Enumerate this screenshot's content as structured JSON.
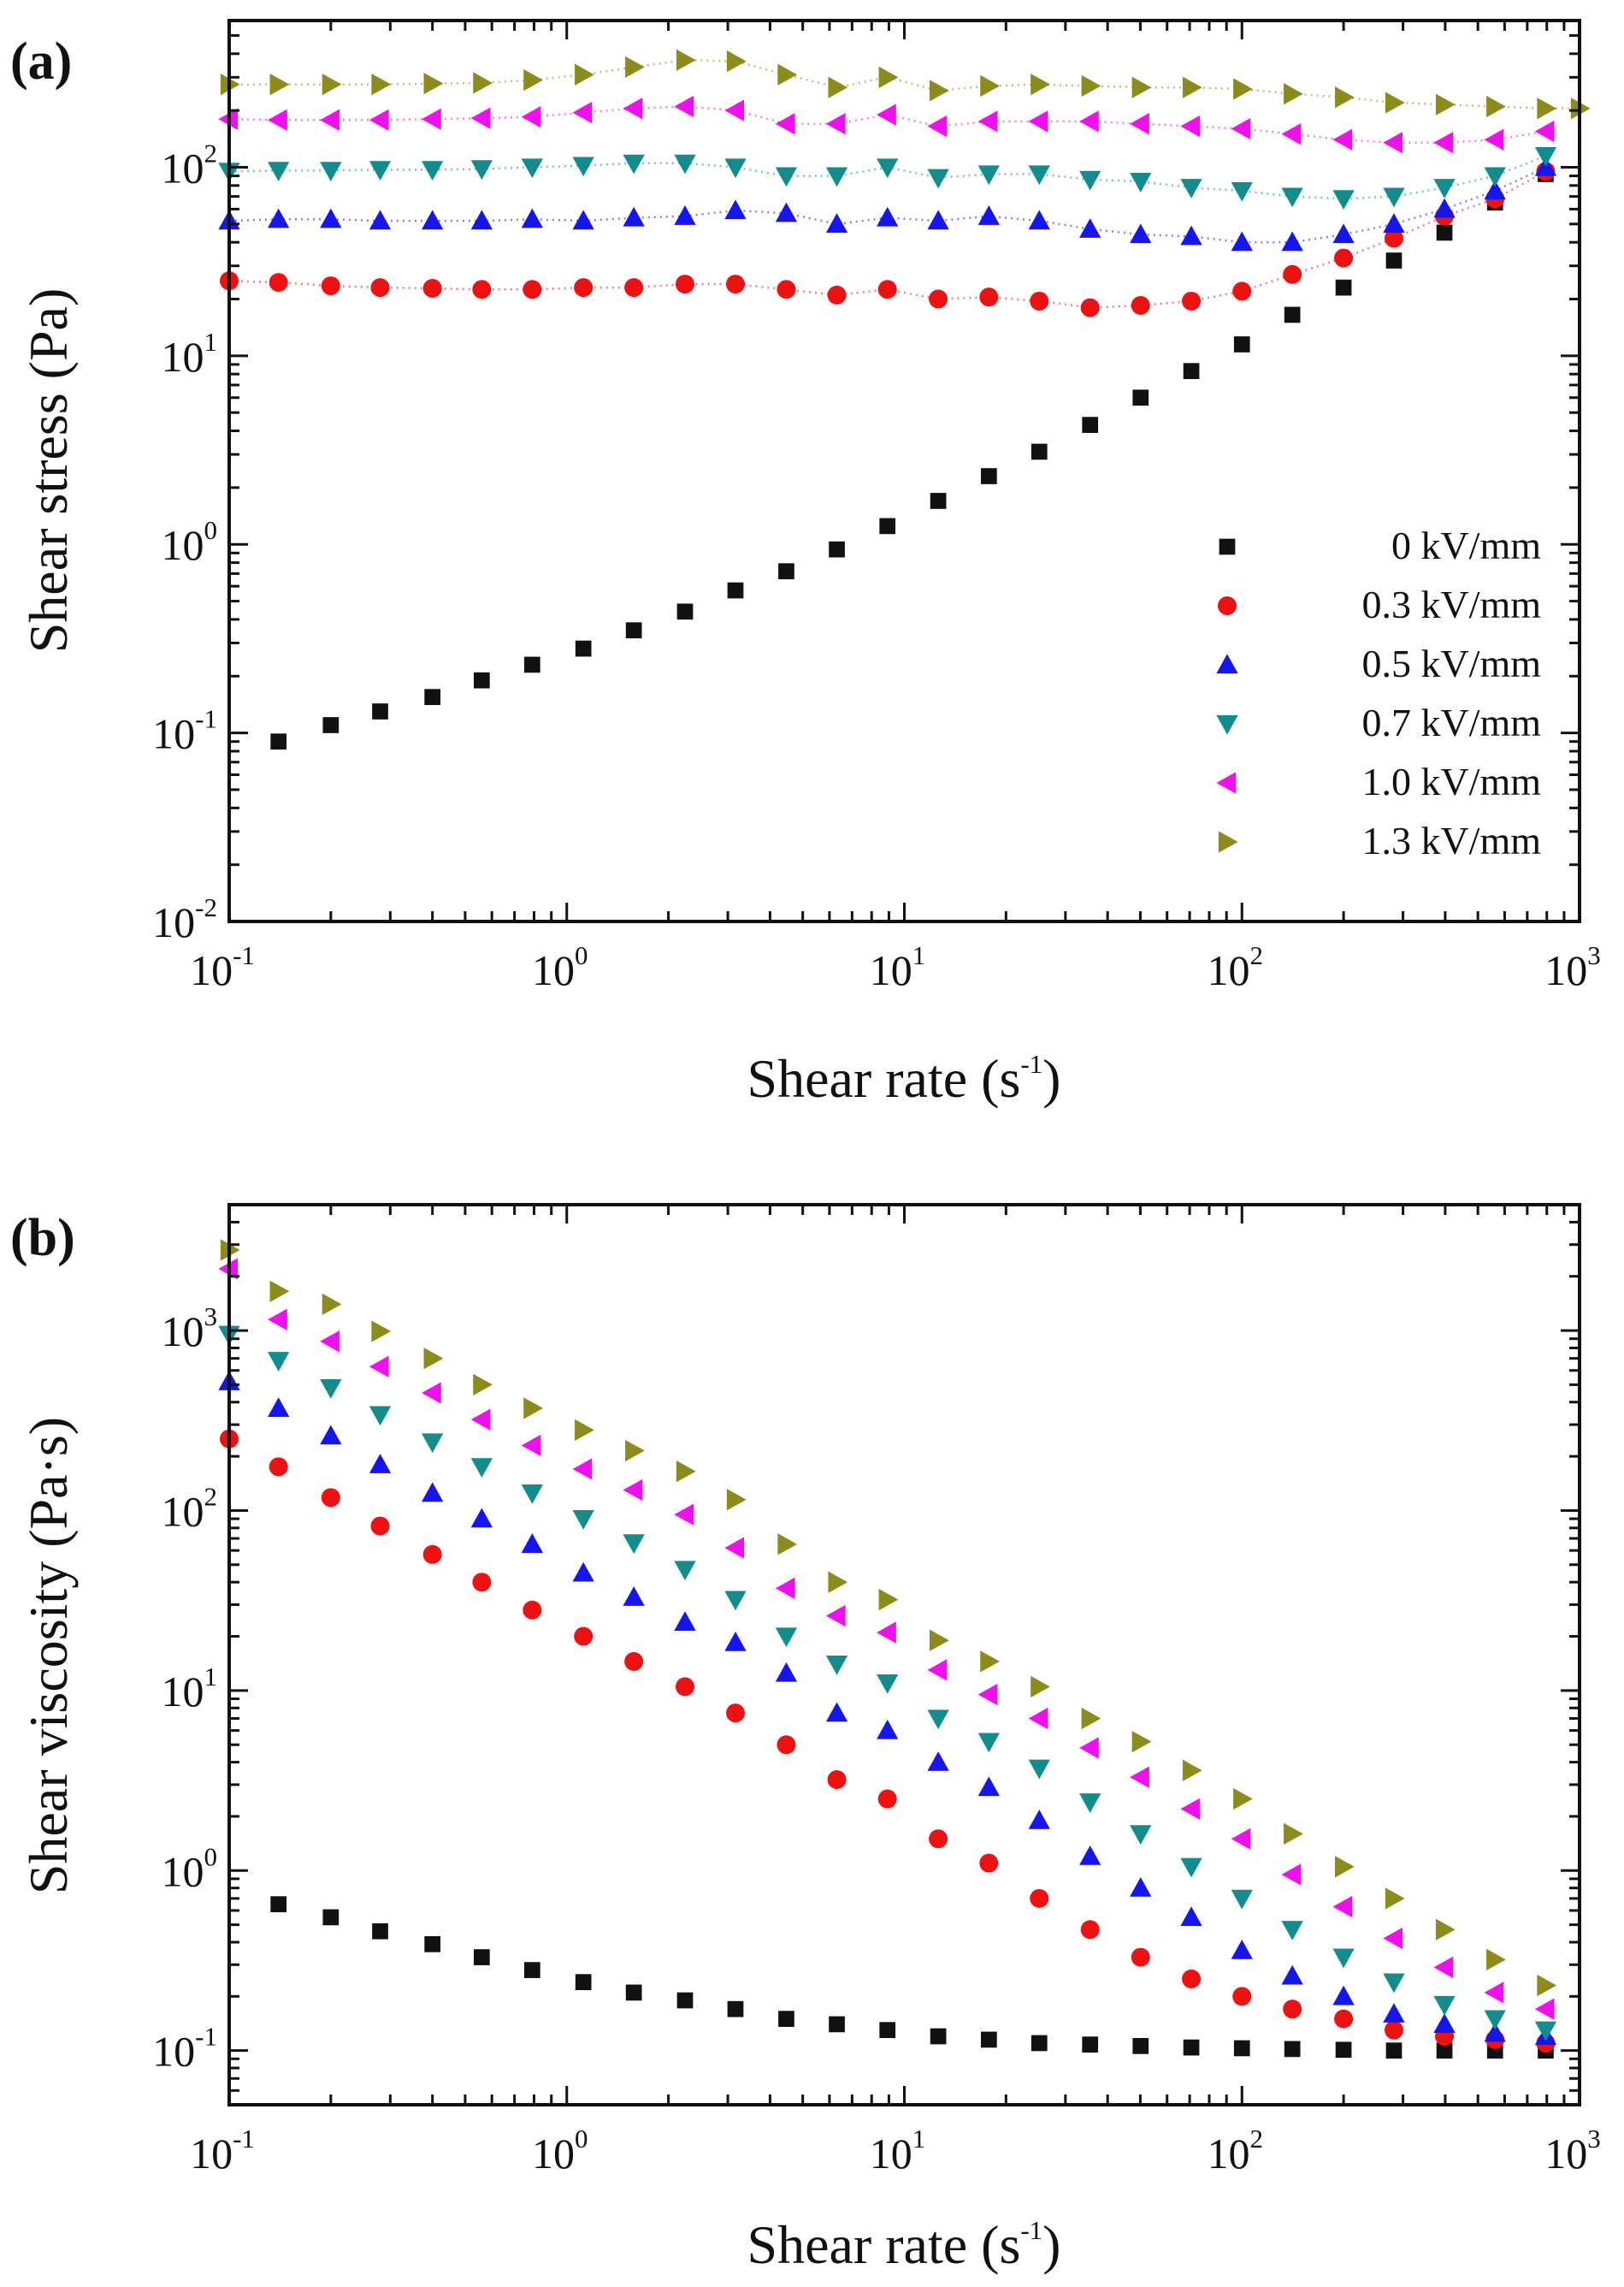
{
  "chart_data": [
    {
      "panel_label": "(a)",
      "type": "scatter",
      "xlabel": "Shear rate (s",
      "xlabel_sup": "-1",
      "xlabel_close": ")",
      "ylabel": "Shear stress (Pa)",
      "xscale": "log",
      "yscale": "log",
      "xlim": [
        0.1,
        1000
      ],
      "ylim": [
        0.01,
        600
      ],
      "x_ticks": [
        {
          "base": "10",
          "exp": "-1"
        },
        {
          "base": "10",
          "exp": "0"
        },
        {
          "base": "10",
          "exp": "1"
        },
        {
          "base": "10",
          "exp": "2"
        },
        {
          "base": "10",
          "exp": "3"
        }
      ],
      "y_ticks": [
        {
          "base": "10",
          "exp": "-2"
        },
        {
          "base": "10",
          "exp": "-1"
        },
        {
          "base": "10",
          "exp": "0"
        },
        {
          "base": "10",
          "exp": "1"
        },
        {
          "base": "10",
          "exp": "2"
        }
      ],
      "legend_position": "bottom-right",
      "x": [
        0.1,
        0.14,
        0.2,
        0.28,
        0.4,
        0.56,
        0.79,
        1.12,
        1.58,
        2.24,
        3.16,
        4.47,
        6.31,
        8.91,
        12.6,
        17.8,
        25.1,
        35.5,
        50.1,
        70.8,
        100,
        141,
        200,
        282,
        398,
        562,
        794,
        1000
      ],
      "series": [
        {
          "name": "0 kV/mm",
          "marker": "square",
          "color": "#111111",
          "fit": false,
          "x": [
            0.14,
            0.2,
            0.28,
            0.4,
            0.56,
            0.79,
            1.12,
            1.58,
            2.24,
            3.16,
            4.47,
            6.31,
            8.91,
            12.6,
            17.8,
            25.1,
            35.5,
            50.1,
            70.8,
            100,
            141,
            200,
            282,
            398,
            562,
            794
          ],
          "values": [
            0.09,
            0.11,
            0.13,
            0.155,
            0.19,
            0.23,
            0.28,
            0.35,
            0.44,
            0.57,
            0.72,
            0.94,
            1.25,
            1.7,
            2.3,
            3.1,
            4.3,
            6.0,
            8.3,
            11.5,
            16.5,
            23,
            32,
            45,
            65,
            92
          ]
        },
        {
          "name": "0.3 kV/mm",
          "marker": "circle",
          "color": "#ee1111",
          "fit": true,
          "x": [
            0.1,
            0.14,
            0.2,
            0.28,
            0.4,
            0.56,
            0.79,
            1.12,
            1.58,
            2.24,
            3.16,
            4.47,
            6.31,
            8.91,
            12.6,
            17.8,
            25.1,
            35.5,
            50.1,
            70.8,
            100,
            141,
            200,
            282,
            398,
            562,
            794
          ],
          "values": [
            25,
            24.5,
            23.5,
            23,
            22.8,
            22.5,
            22.5,
            23,
            23,
            24,
            24,
            22.5,
            21,
            22.5,
            20,
            20.5,
            19.5,
            18,
            18.5,
            19.5,
            22,
            27,
            33,
            42,
            55,
            68,
            95
          ]
        },
        {
          "name": "0.5 kV/mm",
          "marker": "triangle-up",
          "color": "#1515ee",
          "fit": true,
          "x": [
            0.1,
            0.14,
            0.2,
            0.28,
            0.4,
            0.56,
            0.79,
            1.12,
            1.58,
            2.24,
            3.16,
            4.47,
            6.31,
            8.91,
            12.6,
            17.8,
            25.1,
            35.5,
            50.1,
            70.8,
            100,
            141,
            200,
            282,
            398,
            562,
            794
          ],
          "values": [
            52,
            53,
            53,
            52,
            52,
            52,
            53,
            52,
            54,
            55,
            59,
            57,
            50,
            54,
            52,
            55,
            52,
            47,
            44,
            43,
            40,
            40,
            44,
            50,
            60,
            75,
            100
          ]
        },
        {
          "name": "0.7 kV/mm",
          "marker": "triangle-down",
          "color": "#128c8c",
          "fit": true,
          "x": [
            0.1,
            0.14,
            0.2,
            0.28,
            0.4,
            0.56,
            0.79,
            1.12,
            1.58,
            2.24,
            3.16,
            4.47,
            6.31,
            8.91,
            12.6,
            17.8,
            25.1,
            35.5,
            50.1,
            70.8,
            100,
            141,
            200,
            282,
            398,
            562,
            794
          ],
          "values": [
            95,
            96,
            96,
            97,
            97,
            98,
            100,
            102,
            105,
            105,
            100,
            90,
            90,
            100,
            88,
            92,
            92,
            86,
            84,
            78,
            75,
            70,
            68,
            70,
            78,
            90,
            115
          ]
        },
        {
          "name": "1.0 kV/mm",
          "marker": "triangle-left",
          "color": "#ee11ee",
          "fit": true,
          "x": [
            0.1,
            0.14,
            0.2,
            0.28,
            0.4,
            0.56,
            0.79,
            1.12,
            1.58,
            2.24,
            3.16,
            4.47,
            6.31,
            8.91,
            12.6,
            17.8,
            25.1,
            35.5,
            50.1,
            70.8,
            100,
            141,
            200,
            282,
            398,
            562,
            794
          ],
          "values": [
            180,
            178,
            178,
            178,
            180,
            182,
            185,
            195,
            205,
            210,
            200,
            170,
            170,
            190,
            165,
            175,
            175,
            175,
            170,
            165,
            160,
            150,
            140,
            135,
            135,
            140,
            155
          ]
        },
        {
          "name": "1.3 kV/mm",
          "marker": "triangle-right",
          "color": "#8c8c1a",
          "fit": true,
          "x": [
            0.1,
            0.14,
            0.2,
            0.28,
            0.4,
            0.56,
            0.79,
            1.12,
            1.58,
            2.24,
            3.16,
            4.47,
            6.31,
            8.91,
            12.6,
            17.8,
            25.1,
            35.5,
            50.1,
            70.8,
            100,
            141,
            200,
            282,
            398,
            562,
            794,
            1000
          ],
          "values": [
            275,
            275,
            275,
            275,
            278,
            280,
            290,
            310,
            340,
            370,
            365,
            310,
            265,
            300,
            255,
            270,
            275,
            270,
            265,
            265,
            260,
            245,
            235,
            220,
            215,
            210,
            205,
            205
          ]
        }
      ]
    },
    {
      "panel_label": "(b)",
      "type": "scatter",
      "xlabel": "Shear rate (s",
      "xlabel_sup": "-1",
      "xlabel_close": ")",
      "ylabel": "Shear viscosity (Pa·s)",
      "xscale": "log",
      "yscale": "log",
      "xlim": [
        0.1,
        1000
      ],
      "ylim": [
        0.05,
        5000
      ],
      "x_ticks": [
        {
          "base": "10",
          "exp": "-1"
        },
        {
          "base": "10",
          "exp": "0"
        },
        {
          "base": "10",
          "exp": "1"
        },
        {
          "base": "10",
          "exp": "2"
        },
        {
          "base": "10",
          "exp": "3"
        }
      ],
      "y_ticks": [
        {
          "base": "10",
          "exp": "-1"
        },
        {
          "base": "10",
          "exp": "0"
        },
        {
          "base": "10",
          "exp": "1"
        },
        {
          "base": "10",
          "exp": "2"
        },
        {
          "base": "10",
          "exp": "3"
        }
      ],
      "x": [
        0.1,
        0.14,
        0.2,
        0.28,
        0.4,
        0.56,
        0.79,
        1.12,
        1.58,
        2.24,
        3.16,
        4.47,
        6.31,
        8.91,
        12.6,
        17.8,
        25.1,
        35.5,
        50.1,
        70.8,
        100,
        141,
        200,
        282,
        398,
        562,
        794
      ],
      "series": [
        {
          "name": "0 kV/mm",
          "marker": "square",
          "color": "#111111",
          "x": [
            0.14,
            0.2,
            0.28,
            0.4,
            0.56,
            0.79,
            1.12,
            1.58,
            2.24,
            3.16,
            4.47,
            6.31,
            8.91,
            12.6,
            17.8,
            25.1,
            35.5,
            50.1,
            70.8,
            100,
            141,
            200,
            282,
            398,
            562,
            794
          ],
          "values": [
            0.65,
            0.55,
            0.46,
            0.39,
            0.33,
            0.28,
            0.24,
            0.21,
            0.19,
            0.17,
            0.15,
            0.14,
            0.13,
            0.12,
            0.115,
            0.11,
            0.108,
            0.106,
            0.104,
            0.103,
            0.102,
            0.101,
            0.1,
            0.1,
            0.1,
            0.1
          ]
        },
        {
          "name": "0.3 kV/mm",
          "marker": "circle",
          "color": "#ee1111",
          "x": [
            0.1,
            0.14,
            0.2,
            0.28,
            0.4,
            0.56,
            0.79,
            1.12,
            1.58,
            2.24,
            3.16,
            4.47,
            6.31,
            8.91,
            12.6,
            17.8,
            25.1,
            35.5,
            50.1,
            70.8,
            100,
            141,
            200,
            282,
            398,
            562,
            794
          ],
          "values": [
            250,
            175,
            118,
            82,
            57,
            40,
            28,
            20,
            14.5,
            10.5,
            7.5,
            5.0,
            3.2,
            2.5,
            1.5,
            1.1,
            0.7,
            0.47,
            0.33,
            0.25,
            0.2,
            0.17,
            0.15,
            0.13,
            0.12,
            0.115,
            0.11
          ]
        },
        {
          "name": "0.5 kV/mm",
          "marker": "triangle-up",
          "color": "#1515ee",
          "x": [
            0.1,
            0.14,
            0.2,
            0.28,
            0.4,
            0.56,
            0.79,
            1.12,
            1.58,
            2.24,
            3.16,
            4.47,
            6.31,
            8.91,
            12.6,
            17.8,
            25.1,
            35.5,
            50.1,
            70.8,
            100,
            141,
            200,
            282,
            398,
            562,
            794
          ],
          "values": [
            520,
            370,
            260,
            180,
            125,
            90,
            65,
            45,
            33,
            24,
            18.5,
            12.5,
            7.5,
            6.0,
            4.0,
            2.9,
            1.9,
            1.2,
            0.8,
            0.55,
            0.36,
            0.26,
            0.2,
            0.16,
            0.14,
            0.125,
            0.12
          ]
        },
        {
          "name": "0.7 kV/mm",
          "marker": "triangle-down",
          "color": "#128c8c",
          "x": [
            0.1,
            0.14,
            0.2,
            0.28,
            0.4,
            0.56,
            0.79,
            1.12,
            1.58,
            2.24,
            3.16,
            4.47,
            6.31,
            8.91,
            12.6,
            17.8,
            25.1,
            35.5,
            50.1,
            70.8,
            100,
            141,
            200,
            282,
            398,
            562,
            794
          ],
          "values": [
            950,
            680,
            480,
            340,
            240,
            175,
            125,
            90,
            66,
            47,
            32,
            20,
            14,
            11,
            7,
            5.2,
            3.7,
            2.4,
            1.6,
            1.05,
            0.7,
            0.47,
            0.33,
            0.24,
            0.18,
            0.15,
            0.13
          ]
        },
        {
          "name": "1.0 kV/mm",
          "marker": "triangle-left",
          "color": "#ee11ee",
          "x": [
            0.1,
            0.14,
            0.2,
            0.28,
            0.4,
            0.56,
            0.79,
            1.12,
            1.58,
            2.24,
            3.16,
            4.47,
            6.31,
            8.91,
            12.6,
            17.8,
            25.1,
            35.5,
            50.1,
            70.8,
            100,
            141,
            200,
            282,
            398,
            562,
            794
          ],
          "values": [
            2200,
            1150,
            870,
            630,
            450,
            320,
            230,
            170,
            130,
            95,
            62,
            37,
            26,
            21,
            13,
            9.5,
            7,
            4.8,
            3.3,
            2.2,
            1.5,
            0.95,
            0.63,
            0.42,
            0.29,
            0.21,
            0.17
          ]
        },
        {
          "name": "1.3 kV/mm",
          "marker": "triangle-right",
          "color": "#8c8c1a",
          "x": [
            0.1,
            0.14,
            0.2,
            0.28,
            0.4,
            0.56,
            0.79,
            1.12,
            1.58,
            2.24,
            3.16,
            4.47,
            6.31,
            8.91,
            12.6,
            17.8,
            25.1,
            35.5,
            50.1,
            70.8,
            100,
            141,
            200,
            282,
            398,
            562,
            794
          ],
          "values": [
            2800,
            1650,
            1400,
            990,
            700,
            500,
            370,
            280,
            215,
            165,
            115,
            65,
            40,
            32,
            19,
            14.5,
            10.5,
            7,
            5.2,
            3.6,
            2.5,
            1.6,
            1.05,
            0.7,
            0.47,
            0.32,
            0.23
          ]
        }
      ]
    }
  ]
}
